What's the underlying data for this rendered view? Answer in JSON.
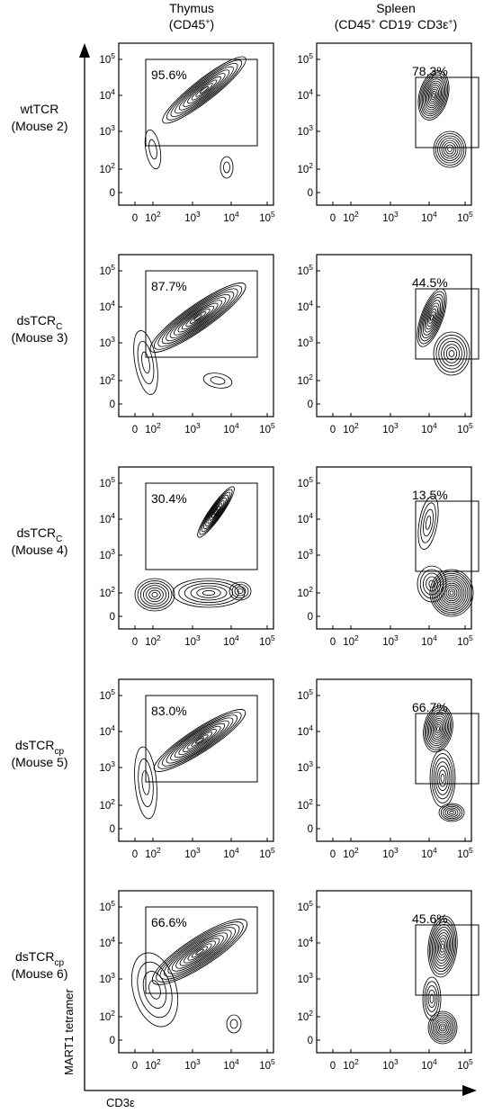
{
  "column_headers": [
    {
      "name": "Thymus",
      "gate": "(CD45",
      "gate_sup": "+",
      "gate_end": ")"
    },
    {
      "name": "Spleen",
      "gate": "(CD45",
      "gate_sup": "+",
      "gate_mid": " CD19",
      "gate_sup2": "-",
      "gate_mid2": " CD3ε",
      "gate_sup3": "+",
      "gate_end": ")"
    }
  ],
  "axes": {
    "x_title": "CD3ε",
    "y_title": "MART1 tetramer",
    "x_ticks": [
      {
        "base": "0",
        "exp": ""
      },
      {
        "base": "10",
        "exp": "2"
      },
      {
        "base": "10",
        "exp": "3"
      },
      {
        "base": "10",
        "exp": "4"
      },
      {
        "base": "10",
        "exp": "5"
      }
    ],
    "y_ticks": [
      {
        "base": "10",
        "exp": "5"
      },
      {
        "base": "10",
        "exp": "4"
      },
      {
        "base": "10",
        "exp": "3"
      },
      {
        "base": "10",
        "exp": "2"
      },
      {
        "base": "0",
        "exp": ""
      }
    ]
  },
  "rows": [
    {
      "label_main": "wtTCR",
      "label_sub": "",
      "mouse": "(Mouse 2)",
      "thymus_pct": "95.6%",
      "spleen_pct": "78.3%"
    },
    {
      "label_main": "dsTCR",
      "label_sub": "C",
      "mouse": "(Mouse 3)",
      "thymus_pct": "87.7%",
      "spleen_pct": "44.5%"
    },
    {
      "label_main": "dsTCR",
      "label_sub": "C",
      "mouse": "(Mouse 4)",
      "thymus_pct": "30.4%",
      "spleen_pct": "13.5%"
    },
    {
      "label_main": "dsTCR",
      "label_sub": "cp",
      "mouse": "(Mouse 5)",
      "thymus_pct": "83.0%",
      "spleen_pct": "66.7%"
    },
    {
      "label_main": "dsTCR",
      "label_sub": "cp",
      "mouse": "(Mouse 6)",
      "thymus_pct": "66.6%",
      "spleen_pct": "45.6%"
    }
  ]
}
